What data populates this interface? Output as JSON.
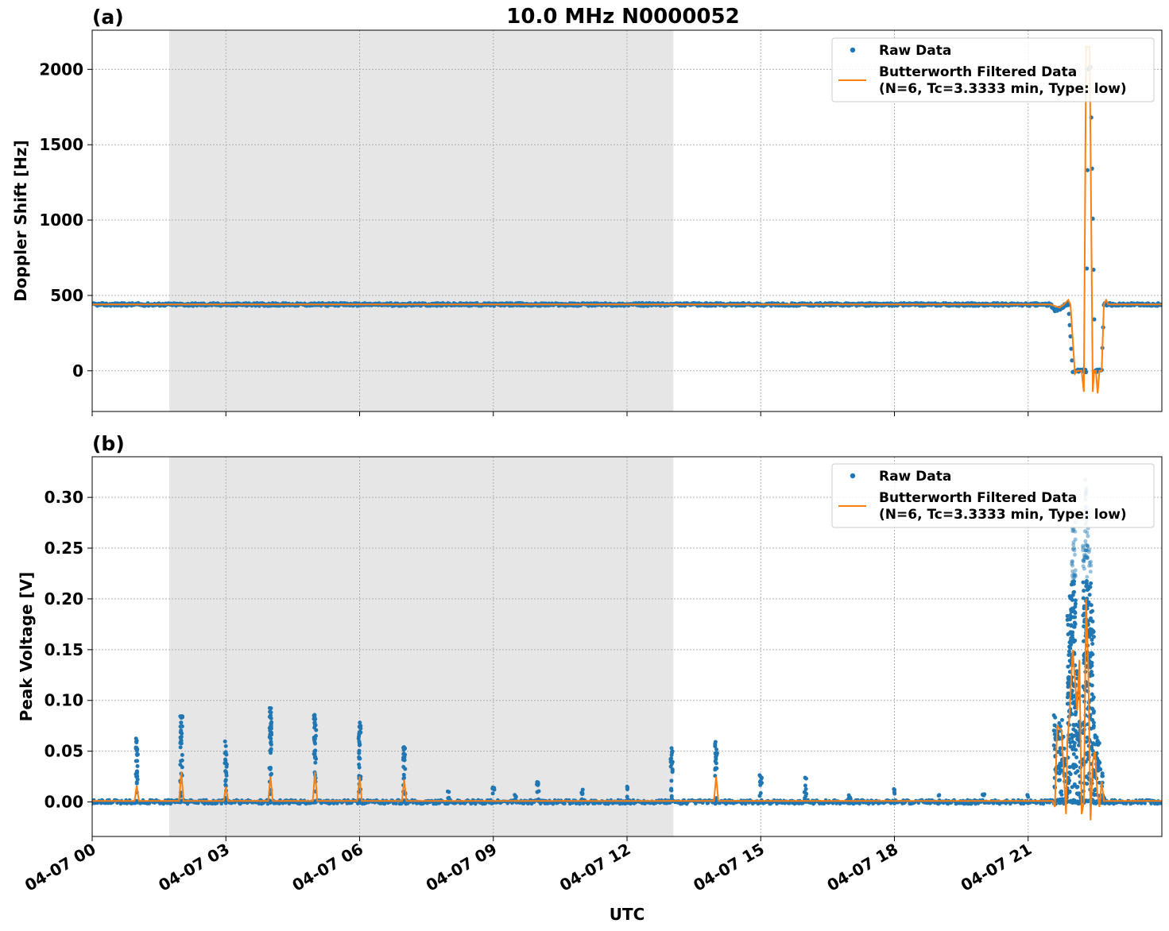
{
  "figure_title": "10.0 MHz N0000052",
  "colors": {
    "raw": "#1f77b4",
    "filtered": "#ff7f0e",
    "shade": "#e6e6e6",
    "grid": "#b0b0b0"
  },
  "x_axis": {
    "label": "UTC",
    "range_hours": [
      0,
      24
    ],
    "tick_hours": [
      0,
      3,
      6,
      9,
      12,
      15,
      18,
      21
    ],
    "tick_labels": [
      "04-07 00",
      "04-07 03",
      "04-07 06",
      "04-07 09",
      "04-07 12",
      "04-07 15",
      "04-07 18",
      "04-07 21"
    ]
  },
  "shaded_interval_hours": [
    1.73,
    13.04
  ],
  "legend": {
    "raw_label": "Raw Data",
    "filtered_label_line1": "Butterworth Filtered Data",
    "filtered_label_line2": "(N=6, Tc=3.3333 min, Type: low)"
  },
  "chart_data": [
    {
      "panel": "(a)",
      "type": "line",
      "ylabel": "Doppler Shift [Hz]",
      "ylim": [
        -270,
        2260
      ],
      "yticks": [
        0,
        500,
        1000,
        1500,
        2000
      ],
      "ytick_labels": [
        "0",
        "500",
        "1000",
        "1500",
        "2000"
      ],
      "grid": true,
      "legend_position": "top-right",
      "series": [
        {
          "name": "Raw Data",
          "style": "dots",
          "x": [
            0,
            1,
            2,
            3,
            4,
            5,
            6,
            7,
            8,
            9,
            10,
            11,
            12,
            13,
            14,
            15,
            16,
            17,
            18,
            19,
            20,
            21,
            21.5,
            21.6,
            21.7,
            21.8,
            21.9,
            22.0,
            22.05,
            22.1,
            22.2,
            22.3,
            22.35,
            22.4,
            22.5,
            22.6,
            22.65,
            22.7,
            22.8,
            22.9,
            23.0,
            23.5,
            24
          ],
          "y": [
            440,
            440,
            440,
            440,
            440,
            440,
            440,
            440,
            440,
            440,
            440,
            440,
            440,
            440,
            440,
            440,
            440,
            440,
            440,
            440,
            440,
            440,
            440,
            400,
            410,
            430,
            445,
            0,
            0,
            0,
            0,
            0,
            2010,
            2010,
            0,
            0,
            0,
            445,
            440,
            440,
            440,
            440,
            440
          ]
        },
        {
          "name": "Butterworth Filtered Data",
          "style": "line",
          "x": [
            0,
            21.5,
            21.6,
            21.7,
            21.8,
            21.9,
            21.95,
            22.05,
            22.1,
            22.15,
            22.2,
            22.25,
            22.3,
            22.32,
            22.38,
            22.45,
            22.48,
            22.52,
            22.56,
            22.6,
            22.65,
            22.7,
            22.75,
            22.8,
            24
          ],
          "y": [
            440,
            440,
            430,
            420,
            440,
            470,
            440,
            -20,
            0,
            0,
            0,
            -140,
            2150,
            2150,
            2150,
            -140,
            0,
            0,
            -150,
            0,
            0,
            440,
            470,
            440,
            440
          ]
        }
      ]
    },
    {
      "panel": "(b)",
      "type": "line",
      "ylabel": "Peak Voltage [V]",
      "ylim": [
        -0.034,
        0.34
      ],
      "yticks": [
        0.0,
        0.05,
        0.1,
        0.15,
        0.2,
        0.25,
        0.3
      ],
      "ytick_labels": [
        "0.00",
        "0.05",
        "0.10",
        "0.15",
        "0.20",
        "0.25",
        "0.30"
      ],
      "grid": true,
      "legend_position": "top-right",
      "baseline": 0.0,
      "series": [
        {
          "name": "Raw Data",
          "style": "dots",
          "spikes": [
            {
              "x": 1.0,
              "peak": 0.065
            },
            {
              "x": 2.0,
              "peak": 0.085
            },
            {
              "x": 3.0,
              "peak": 0.06
            },
            {
              "x": 4.0,
              "peak": 0.093
            },
            {
              "x": 5.0,
              "peak": 0.086
            },
            {
              "x": 6.0,
              "peak": 0.08
            },
            {
              "x": 7.0,
              "peak": 0.054
            },
            {
              "x": 8.0,
              "peak": 0.011
            },
            {
              "x": 9.0,
              "peak": 0.015
            },
            {
              "x": 9.5,
              "peak": 0.008
            },
            {
              "x": 10.0,
              "peak": 0.022
            },
            {
              "x": 11.0,
              "peak": 0.014
            },
            {
              "x": 12.0,
              "peak": 0.015
            },
            {
              "x": 13.0,
              "peak": 0.054
            },
            {
              "x": 14.0,
              "peak": 0.06
            },
            {
              "x": 15.0,
              "peak": 0.027
            },
            {
              "x": 16.0,
              "peak": 0.025
            },
            {
              "x": 17.0,
              "peak": 0.01
            },
            {
              "x": 18.0,
              "peak": 0.013
            },
            {
              "x": 19.0,
              "peak": 0.007
            },
            {
              "x": 20.0,
              "peak": 0.008
            },
            {
              "x": 21.0,
              "peak": 0.007
            }
          ],
          "burst": {
            "x": [
              21.6,
              21.65,
              21.7,
              21.75,
              21.8,
              21.85,
              21.9,
              21.95,
              22.0,
              22.05,
              22.1,
              22.15,
              22.2,
              22.25,
              22.3,
              22.35,
              22.4,
              22.45,
              22.5,
              22.55,
              22.6,
              22.65,
              22.7
            ],
            "y": [
              0.088,
              0.075,
              0.08,
              0.082,
              0.07,
              0.005,
              0.19,
              0.21,
              0.27,
              0.28,
              0.13,
              0.08,
              0.005,
              0.26,
              0.32,
              0.27,
              0.24,
              0.19,
              0.07,
              0.072,
              0.06,
              0.03,
              0.005
            ]
          }
        },
        {
          "name": "Butterworth Filtered Data",
          "style": "line",
          "x": [
            0,
            0.95,
            1.0,
            1.05,
            1.95,
            2.0,
            2.05,
            2.95,
            3.0,
            3.05,
            3.95,
            4.0,
            4.05,
            4.95,
            5.0,
            5.05,
            5.95,
            6.0,
            6.05,
            6.95,
            7.0,
            7.05,
            13.95,
            14.0,
            14.05,
            21.55,
            21.6,
            21.65,
            21.75,
            21.85,
            21.88,
            21.92,
            22.0,
            22.05,
            22.1,
            22.15,
            22.2,
            22.25,
            22.3,
            22.35,
            22.4,
            22.45,
            22.5,
            22.55,
            22.6,
            22.65,
            22.7,
            24
          ],
          "y": [
            0.001,
            0.001,
            0.016,
            0.001,
            0.001,
            0.03,
            0.001,
            0.001,
            0.015,
            0.001,
            0.001,
            0.025,
            0.001,
            0.001,
            0.03,
            0.001,
            0.001,
            0.025,
            0.001,
            0.001,
            0.022,
            0.001,
            0.001,
            0.025,
            0.001,
            0.001,
            -0.005,
            0.075,
            0.07,
            -0.012,
            0.06,
            0.08,
            0.15,
            0.12,
            0.09,
            0.14,
            -0.012,
            0.0,
            0.2,
            0.13,
            -0.018,
            0.04,
            0.05,
            0.01,
            -0.005,
            0.02,
            0.001,
            0.001
          ]
        }
      ]
    }
  ]
}
